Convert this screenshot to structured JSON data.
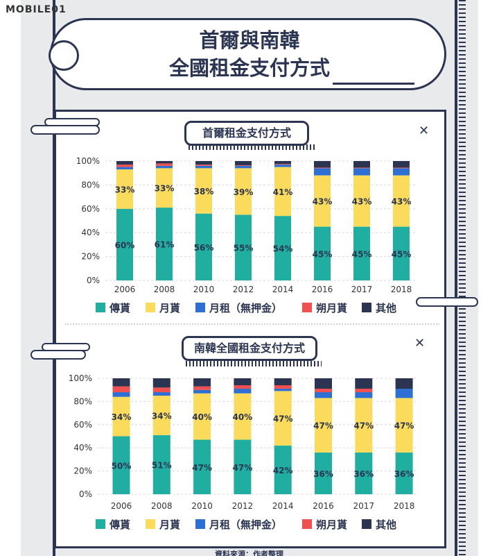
{
  "logo": "MOBILE01",
  "title_lines": [
    "首爾與南韓",
    "全國租金支付方式"
  ],
  "footer": "資料來源：作者整理",
  "colors": {
    "傳貰": "#20aea0",
    "月貰": "#fbdb5b",
    "月租(無押金)": "#2d6fd3",
    "朔月貰": "#f05050",
    "其他": "#2b3552"
  },
  "icons": [
    "sparkle-icon",
    "cloud-icon"
  ],
  "chart_data": [
    {
      "type": "bar",
      "stacked": true,
      "title": "首爾租金支付方式",
      "categories": [
        "2006",
        "2008",
        "2010",
        "2012",
        "2014",
        "2016",
        "2017",
        "2018"
      ],
      "ylim": [
        0,
        100
      ],
      "yticks": [
        "0%",
        "20%",
        "40%",
        "60%",
        "80%",
        "100%"
      ],
      "series": [
        {
          "name": "傳貰",
          "values": [
            60,
            61,
            56,
            55,
            54,
            45,
            45,
            45
          ],
          "labels": [
            "60%",
            "61%",
            "56%",
            "55%",
            "54%",
            "45%",
            "45%",
            "45%"
          ]
        },
        {
          "name": "月貰",
          "values": [
            33,
            33,
            38,
            39,
            41,
            43,
            43,
            43
          ],
          "labels": [
            "33%",
            "33%",
            "38%",
            "39%",
            "41%",
            "43%",
            "43%",
            "43%"
          ]
        },
        {
          "name": "月租（無押金）",
          "values": [
            2,
            2,
            2,
            2,
            2,
            6,
            6,
            6
          ]
        },
        {
          "name": "朔月貰",
          "values": [
            2,
            2,
            1,
            0.5,
            0.5,
            0.5,
            0.5,
            0.5
          ]
        },
        {
          "name": "其他",
          "values": [
            3,
            2,
            3,
            3.5,
            2.5,
            5.5,
            5.5,
            5.5
          ]
        }
      ],
      "legend": "bottom"
    },
    {
      "type": "bar",
      "stacked": true,
      "title": "南韓全國租金支付方式",
      "categories": [
        "2006",
        "2008",
        "2010",
        "2012",
        "2014",
        "2016",
        "2017",
        "2018"
      ],
      "ylim": [
        0,
        100
      ],
      "yticks": [
        "0%",
        "20%",
        "40%",
        "60%",
        "80%",
        "100%"
      ],
      "series": [
        {
          "name": "傳貰",
          "values": [
            50,
            51,
            47,
            47,
            42,
            36,
            36,
            36
          ],
          "labels": [
            "50%",
            "51%",
            "47%",
            "47%",
            "42%",
            "36%",
            "36%",
            "36%"
          ]
        },
        {
          "name": "月貰",
          "values": [
            34,
            34,
            40,
            40,
            47,
            47,
            47,
            47
          ],
          "labels": [
            "34%",
            "34%",
            "40%",
            "40%",
            "47%",
            "47%",
            "47%",
            "47%"
          ]
        },
        {
          "name": "月租（無押金）",
          "values": [
            4,
            3,
            3,
            4,
            2,
            5,
            5,
            8
          ]
        },
        {
          "name": "朔月貰",
          "values": [
            5,
            4,
            3,
            3,
            3,
            3,
            3,
            0
          ]
        },
        {
          "name": "其他",
          "values": [
            7,
            8,
            7,
            6,
            6,
            9,
            9,
            9
          ]
        }
      ],
      "legend": "bottom"
    }
  ]
}
